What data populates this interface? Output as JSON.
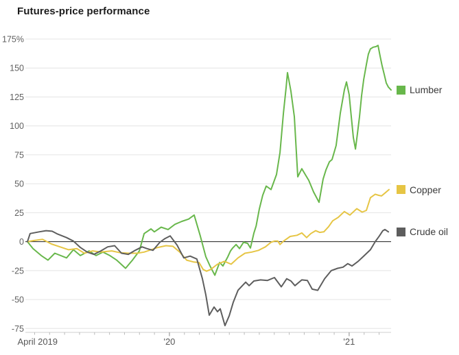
{
  "title": "Futures-price performance",
  "colors": {
    "grid": "#e4e4e4",
    "zero_line": "#1a1a1a",
    "axis_baseline": "#cfcfcf",
    "minor_tick": "#b9b9b9",
    "year_tick": "#8a8a8a",
    "title_text": "#1c1c1c",
    "axis_text": "#5f5f5f"
  },
  "chart_data": {
    "type": "line",
    "title": "Futures-price performance",
    "grid": true,
    "legend_position": "right-of-line-ends",
    "x_axis": {
      "unit": "months since April 2019",
      "range": [
        0,
        24.3
      ],
      "labels": [
        {
          "text": "April 2019",
          "t": 0.48,
          "anchor": "start"
        },
        {
          "text": "'20",
          "t": 9.48,
          "anchor": "middle"
        },
        {
          "text": "'21",
          "t": 21.48,
          "anchor": "middle"
        }
      ]
    },
    "y_axis": {
      "unit": "percent change",
      "range": [
        -75,
        175
      ],
      "ticks": [
        {
          "v": 175,
          "label": "175%"
        },
        {
          "v": 150,
          "label": "150"
        },
        {
          "v": 125,
          "label": "125"
        },
        {
          "v": 100,
          "label": "100"
        },
        {
          "v": 75,
          "label": "75"
        },
        {
          "v": 50,
          "label": "50"
        },
        {
          "v": 25,
          "label": "25"
        },
        {
          "v": 0,
          "label": "0"
        },
        {
          "v": -25,
          "label": "-25"
        },
        {
          "v": -50,
          "label": "-50"
        },
        {
          "v": -75,
          "label": "-75"
        }
      ]
    },
    "series": [
      {
        "name": "Lumber",
        "color": "#68b74b",
        "points": [
          [
            0,
            0
          ],
          [
            0.37,
            -6
          ],
          [
            0.92,
            -12
          ],
          [
            1.37,
            -16
          ],
          [
            1.83,
            -10
          ],
          [
            2.61,
            -14
          ],
          [
            3.07,
            -7
          ],
          [
            3.53,
            -12
          ],
          [
            4.12,
            -8
          ],
          [
            4.58,
            -12
          ],
          [
            5.04,
            -9
          ],
          [
            5.5,
            -12
          ],
          [
            5.96,
            -16
          ],
          [
            6.55,
            -23
          ],
          [
            7.01,
            -16
          ],
          [
            7.47,
            -8
          ],
          [
            7.79,
            7
          ],
          [
            8.25,
            11
          ],
          [
            8.47,
            8.5
          ],
          [
            8.93,
            12.5
          ],
          [
            9.39,
            10.5
          ],
          [
            9.85,
            15
          ],
          [
            10.31,
            17.5
          ],
          [
            10.76,
            19.5
          ],
          [
            11.13,
            23
          ],
          [
            11.54,
            5
          ],
          [
            11.91,
            -13
          ],
          [
            12.19,
            -21
          ],
          [
            12.51,
            -29
          ],
          [
            12.83,
            -18
          ],
          [
            13.05,
            -21
          ],
          [
            13.38,
            -13
          ],
          [
            13.56,
            -8
          ],
          [
            13.7,
            -5.5
          ],
          [
            13.93,
            -2.5
          ],
          [
            14.16,
            -6
          ],
          [
            14.43,
            -0.5
          ],
          [
            14.7,
            -1.5
          ],
          [
            14.89,
            -5.5
          ],
          [
            15.12,
            7.5
          ],
          [
            15.27,
            13.5
          ],
          [
            15.48,
            28
          ],
          [
            15.71,
            40
          ],
          [
            15.94,
            48
          ],
          [
            16.26,
            45
          ],
          [
            16.63,
            58
          ],
          [
            16.86,
            77
          ],
          [
            17.09,
            111
          ],
          [
            17.27,
            133
          ],
          [
            17.36,
            146
          ],
          [
            17.59,
            130
          ],
          [
            17.82,
            108
          ],
          [
            18.05,
            56
          ],
          [
            18.32,
            63
          ],
          [
            18.55,
            58
          ],
          [
            18.78,
            53
          ],
          [
            19.1,
            43
          ],
          [
            19.47,
            34
          ],
          [
            19.74,
            54
          ],
          [
            19.93,
            62
          ],
          [
            20.16,
            69
          ],
          [
            20.34,
            71
          ],
          [
            20.61,
            83
          ],
          [
            20.89,
            111
          ],
          [
            21.16,
            131
          ],
          [
            21.3,
            138
          ],
          [
            21.48,
            127
          ],
          [
            21.62,
            108
          ],
          [
            21.76,
            90
          ],
          [
            21.9,
            80
          ],
          [
            22.03,
            93
          ],
          [
            22.17,
            108
          ],
          [
            22.31,
            126
          ],
          [
            22.45,
            140
          ],
          [
            22.63,
            153
          ],
          [
            22.76,
            162
          ],
          [
            22.9,
            166.5
          ],
          [
            23.09,
            168
          ],
          [
            23.27,
            168.5
          ],
          [
            23.41,
            169.5
          ],
          [
            23.55,
            160
          ],
          [
            23.68,
            152
          ],
          [
            23.82,
            144.5
          ],
          [
            23.96,
            137
          ],
          [
            24.1,
            133.5
          ],
          [
            24.28,
            131
          ]
        ]
      },
      {
        "name": "Copper",
        "color": "#e6c544",
        "points": [
          [
            0,
            0
          ],
          [
            0.46,
            1
          ],
          [
            1.01,
            2
          ],
          [
            1.6,
            -2
          ],
          [
            2.29,
            -5
          ],
          [
            2.75,
            -7
          ],
          [
            3.3,
            -6
          ],
          [
            3.8,
            -10
          ],
          [
            4.35,
            -8
          ],
          [
            4.9,
            -9
          ],
          [
            5.63,
            -8
          ],
          [
            6.18,
            -9.5
          ],
          [
            6.78,
            -10
          ],
          [
            7.33,
            -10
          ],
          [
            7.79,
            -9
          ],
          [
            8.25,
            -7
          ],
          [
            8.7,
            -5
          ],
          [
            9.25,
            -3.5
          ],
          [
            9.71,
            -4
          ],
          [
            10.17,
            -9
          ],
          [
            10.63,
            -16
          ],
          [
            11.08,
            -17.5
          ],
          [
            11.45,
            -18
          ],
          [
            11.73,
            -24
          ],
          [
            11.96,
            -25.5
          ],
          [
            12.23,
            -24
          ],
          [
            12.69,
            -19.5
          ],
          [
            13.15,
            -17
          ],
          [
            13.6,
            -19.5
          ],
          [
            14.06,
            -14
          ],
          [
            14.52,
            -10
          ],
          [
            14.98,
            -9
          ],
          [
            15.43,
            -7.5
          ],
          [
            15.89,
            -4.5
          ],
          [
            16.26,
            -0.5
          ],
          [
            16.49,
            0.5
          ],
          [
            16.72,
            0.5
          ],
          [
            16.86,
            -2.5
          ],
          [
            17.1,
            0.5
          ],
          [
            17.54,
            4.5
          ],
          [
            18,
            5.5
          ],
          [
            18.32,
            7.5
          ],
          [
            18.64,
            3.5
          ],
          [
            18.92,
            7
          ],
          [
            19.24,
            9.5
          ],
          [
            19.51,
            8
          ],
          [
            19.79,
            8.5
          ],
          [
            20.11,
            13
          ],
          [
            20.38,
            18
          ],
          [
            20.75,
            21
          ],
          [
            21.16,
            26
          ],
          [
            21.53,
            23
          ],
          [
            21.99,
            28.5
          ],
          [
            22.35,
            25.5
          ],
          [
            22.63,
            27
          ],
          [
            22.9,
            38
          ],
          [
            23.22,
            41
          ],
          [
            23.45,
            40
          ],
          [
            23.64,
            39.5
          ],
          [
            23.87,
            42
          ],
          [
            24.14,
            45
          ]
        ]
      },
      {
        "name": "Crude oil",
        "color": "#5d5d5d",
        "points": [
          [
            0,
            0
          ],
          [
            0.18,
            7
          ],
          [
            0.78,
            8.5
          ],
          [
            1.24,
            9.5
          ],
          [
            1.65,
            9
          ],
          [
            2.02,
            6.5
          ],
          [
            2.61,
            3.5
          ],
          [
            3.07,
            0.5
          ],
          [
            3.53,
            -5
          ],
          [
            3.99,
            -9
          ],
          [
            4.44,
            -11
          ],
          [
            4.9,
            -8
          ],
          [
            5.36,
            -4.5
          ],
          [
            5.82,
            -3.5
          ],
          [
            6.28,
            -10
          ],
          [
            6.73,
            -11
          ],
          [
            7.19,
            -7.5
          ],
          [
            7.65,
            -4.5
          ],
          [
            7.97,
            -6
          ],
          [
            8.38,
            -7.5
          ],
          [
            8.84,
            -0.5
          ],
          [
            9.16,
            2.5
          ],
          [
            9.53,
            5
          ],
          [
            9.99,
            -3
          ],
          [
            10.44,
            -14
          ],
          [
            10.86,
            -12.5
          ],
          [
            11.31,
            -15
          ],
          [
            11.68,
            -32
          ],
          [
            11.91,
            -46
          ],
          [
            12.14,
            -63.5
          ],
          [
            12.46,
            -56.5
          ],
          [
            12.69,
            -60.5
          ],
          [
            12.87,
            -58
          ],
          [
            13.19,
            -72.5
          ],
          [
            13.47,
            -64
          ],
          [
            13.74,
            -52.5
          ],
          [
            14.06,
            -42
          ],
          [
            14.57,
            -35
          ],
          [
            14.8,
            -38
          ],
          [
            15.12,
            -34
          ],
          [
            15.57,
            -33
          ],
          [
            16.03,
            -33.5
          ],
          [
            16.49,
            -31
          ],
          [
            16.95,
            -39
          ],
          [
            17.31,
            -32
          ],
          [
            17.59,
            -34
          ],
          [
            17.86,
            -38
          ],
          [
            18.32,
            -33
          ],
          [
            18.69,
            -33.5
          ],
          [
            19.01,
            -41
          ],
          [
            19.38,
            -42
          ],
          [
            19.84,
            -32
          ],
          [
            20.29,
            -25
          ],
          [
            20.71,
            -23
          ],
          [
            21.07,
            -22
          ],
          [
            21.39,
            -19
          ],
          [
            21.67,
            -21
          ],
          [
            22.08,
            -17
          ],
          [
            22.49,
            -12
          ],
          [
            22.9,
            -7
          ],
          [
            23.22,
            0
          ],
          [
            23.5,
            5
          ],
          [
            23.73,
            9.5
          ],
          [
            23.87,
            10.5
          ],
          [
            24.1,
            8.5
          ]
        ]
      }
    ]
  }
}
